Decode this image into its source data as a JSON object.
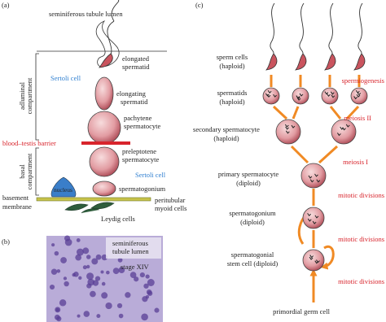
{
  "panel_a": {
    "label": "(a)",
    "lumen": "seminiferous tubule lumen",
    "elongated_spermatid": [
      "elongated",
      "spermatid"
    ],
    "elongating_spermatid": [
      "elongating",
      "spermatid"
    ],
    "pachytene_spermatocyte": [
      "pachytene",
      "spermatocyte"
    ],
    "blood_testis_barrier": "blood–testis barrier",
    "preleptotene_spermatocyte": [
      "preleptotene",
      "spermatocyte"
    ],
    "sertoli_cell_upper": "Sertoli cell",
    "sertoli_cell_lower": "Sertoli cell",
    "spermatogonium": "spermatogonium",
    "nucleus": "nucleus",
    "basement_membrane": [
      "basement",
      "membrane"
    ],
    "peritubular_myoid_cells": [
      "peritubular",
      "myoid cells"
    ],
    "leydig_cells": "Leydig cells",
    "adluminal_compartment": [
      "adluminal",
      "compartment"
    ],
    "basal_compartment": [
      "basal",
      "compartment"
    ]
  },
  "panel_b": {
    "label": "(b)",
    "lumen": [
      "seminiferous",
      "tubule lumen"
    ],
    "stage": "stage XIV"
  },
  "panel_c": {
    "label": "(c)",
    "stages": [
      [
        "sperm cells",
        "(haploid)"
      ],
      [
        "spermatids",
        "(haploid)"
      ],
      [
        "secondary spermatocyte",
        "(haploid)"
      ],
      [
        "primary spermatocyte",
        "(diploid)"
      ],
      [
        "spermatogonium",
        "(diploid)"
      ],
      [
        "spermatogonial",
        "stem cell (diploid)"
      ]
    ],
    "processes": [
      "spermiogenesis",
      "meiosis II",
      "meiosis I",
      "mitotic divisions",
      "mitotic divisions",
      "mitotic divisions"
    ],
    "origin": "primordial germ cell"
  }
}
